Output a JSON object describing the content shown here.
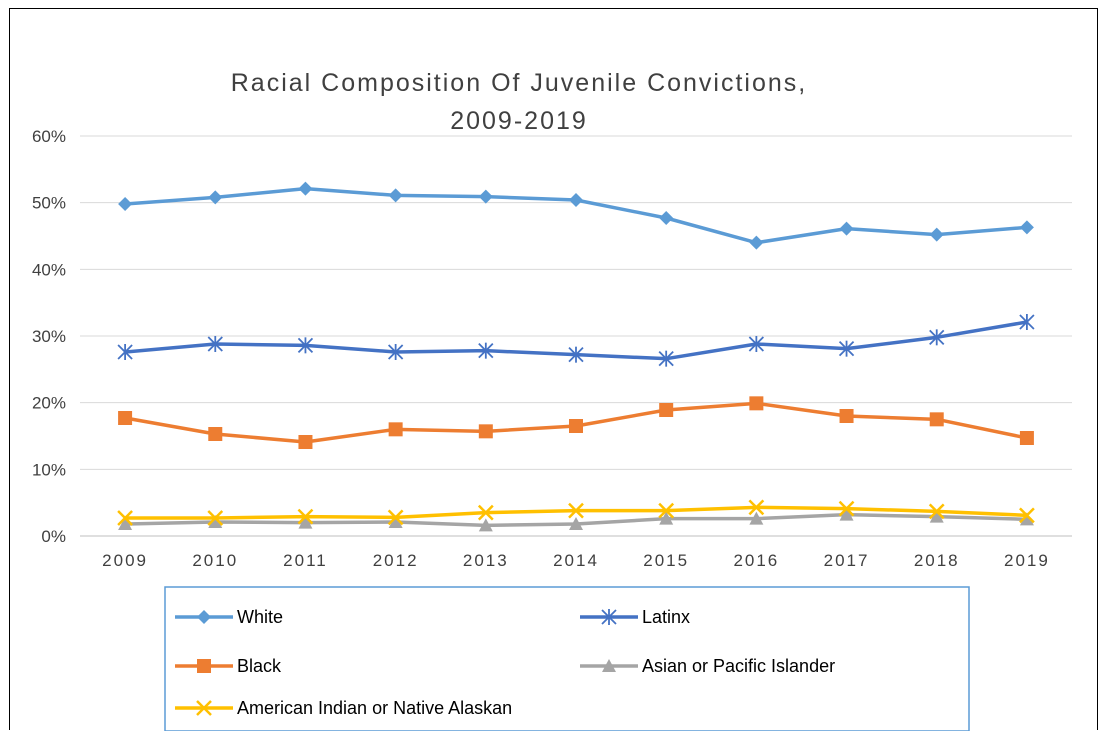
{
  "chart_data": {
    "type": "line",
    "title_lines": [
      "Racial Composition Of Juvenile Convictions,",
      "2009-2019"
    ],
    "xlabel": "",
    "ylabel": "",
    "categories": [
      "2009",
      "2010",
      "2011",
      "2012",
      "2013",
      "2014",
      "2015",
      "2016",
      "2017",
      "2018",
      "2019"
    ],
    "yticks": [
      "0%",
      "10%",
      "20%",
      "30%",
      "40%",
      "50%",
      "60%"
    ],
    "ylim": [
      0,
      60
    ],
    "grid": true,
    "legend_position": "bottom",
    "series": [
      {
        "name": "White",
        "color": "#5B9BD5",
        "marker": "diamond",
        "values": [
          49.8,
          50.8,
          52.1,
          51.1,
          50.9,
          50.4,
          47.7,
          44.0,
          46.1,
          45.2,
          46.3
        ]
      },
      {
        "name": "Latinx",
        "color": "#4472C4",
        "marker": "asterisk",
        "values": [
          27.6,
          28.8,
          28.6,
          27.6,
          27.8,
          27.2,
          26.6,
          28.8,
          28.1,
          29.8,
          32.1
        ]
      },
      {
        "name": "Black",
        "color": "#ED7D31",
        "marker": "square",
        "values": [
          17.7,
          15.3,
          14.1,
          16.0,
          15.7,
          16.5,
          18.9,
          19.9,
          18.0,
          17.5,
          14.7
        ]
      },
      {
        "name": "Asian or Pacific Islander",
        "color": "#A5A5A5",
        "marker": "triangle",
        "values": [
          1.8,
          2.1,
          2.0,
          2.1,
          1.6,
          1.8,
          2.6,
          2.6,
          3.2,
          2.9,
          2.5
        ]
      },
      {
        "name": "American Indian or Native Alaskan",
        "color": "#FFC000",
        "marker": "x",
        "values": [
          2.7,
          2.7,
          2.9,
          2.8,
          3.5,
          3.8,
          3.8,
          4.3,
          4.1,
          3.7,
          3.1
        ]
      }
    ]
  }
}
